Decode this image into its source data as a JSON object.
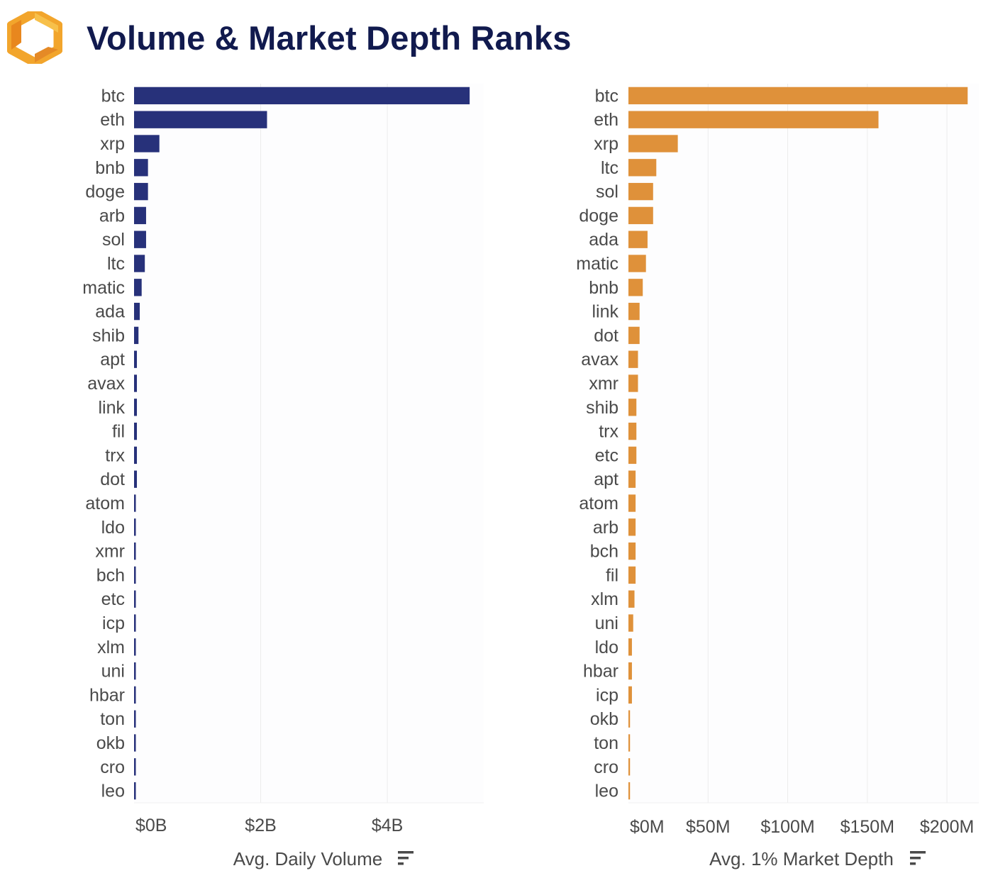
{
  "header": {
    "title": "Volume & Market Depth Ranks",
    "logo_icon": "hexagon-logo-icon",
    "logo_colors": [
      "#f5a623",
      "#e8871e",
      "#f7c04a"
    ]
  },
  "chart_data": [
    {
      "type": "bar",
      "orientation": "horizontal",
      "title": "",
      "xlabel": "Avg. Daily Volume",
      "ylabel": "",
      "color": "#27317a",
      "xlim": [
        0,
        5500000000
      ],
      "xticks": [
        0,
        2000000000,
        4000000000
      ],
      "xtick_labels": [
        "$0B",
        "$2B",
        "$4B"
      ],
      "grid": true,
      "sort_icon": "sort-descending-icon",
      "categories": [
        "btc",
        "eth",
        "xrp",
        "bnb",
        "doge",
        "arb",
        "sol",
        "ltc",
        "matic",
        "ada",
        "shib",
        "apt",
        "avax",
        "link",
        "fil",
        "trx",
        "dot",
        "atom",
        "ldo",
        "xmr",
        "bch",
        "etc",
        "icp",
        "xlm",
        "uni",
        "hbar",
        "ton",
        "okb",
        "cro",
        "leo"
      ],
      "values": [
        5300000000,
        2100000000,
        400000000,
        220000000,
        220000000,
        190000000,
        190000000,
        170000000,
        120000000,
        90000000,
        70000000,
        45000000,
        45000000,
        45000000,
        45000000,
        45000000,
        45000000,
        28000000,
        28000000,
        28000000,
        28000000,
        28000000,
        28000000,
        28000000,
        28000000,
        28000000,
        28000000,
        28000000,
        28000000,
        28000000
      ]
    },
    {
      "type": "bar",
      "orientation": "horizontal",
      "title": "",
      "xlabel": "Avg. 1% Market Depth",
      "ylabel": "",
      "color": "#df913a",
      "xlim": [
        0,
        220000000
      ],
      "xticks": [
        0,
        50000000,
        100000000,
        150000000,
        200000000
      ],
      "xtick_labels": [
        "$0M",
        "$50M",
        "$100M",
        "$150M",
        "$200M"
      ],
      "grid": true,
      "sort_icon": "sort-descending-icon",
      "categories": [
        "btc",
        "eth",
        "xrp",
        "ltc",
        "sol",
        "doge",
        "ada",
        "matic",
        "bnb",
        "link",
        "dot",
        "avax",
        "xmr",
        "shib",
        "trx",
        "etc",
        "apt",
        "atom",
        "arb",
        "bch",
        "fil",
        "xlm",
        "uni",
        "ldo",
        "hbar",
        "icp",
        "okb",
        "ton",
        "cro",
        "leo"
      ],
      "values": [
        213000000,
        157000000,
        31000000,
        17500000,
        15500000,
        15500000,
        12000000,
        11000000,
        9000000,
        7000000,
        7000000,
        6000000,
        6000000,
        5000000,
        5000000,
        5000000,
        4500000,
        4500000,
        4500000,
        4500000,
        4500000,
        3800000,
        3000000,
        2200000,
        2200000,
        2200000,
        1000000,
        1000000,
        1000000,
        1000000
      ]
    }
  ]
}
